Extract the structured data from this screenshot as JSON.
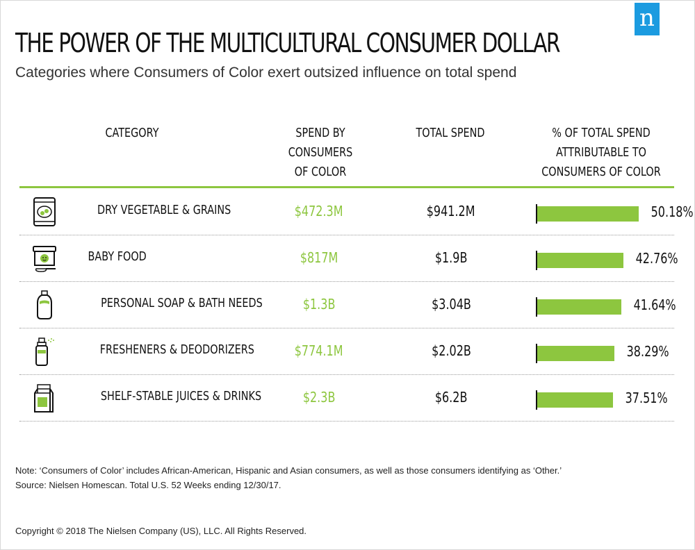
{
  "logo": {
    "letter": "n"
  },
  "title": "THE POWER OF THE MULTICULTURAL CONSUMER DOLLAR",
  "subtitle": "Categories where Consumers of Color exert outsized influence on total spend",
  "colors": {
    "accent": "#8dc63f",
    "logo_bg": "#1b9be0",
    "text": "#111111"
  },
  "headers": {
    "category": [
      "CATEGORY"
    ],
    "spend_by_coc": [
      "SPEND BY",
      "CONSUMERS",
      "OF COLOR"
    ],
    "total_spend": [
      "TOTAL SPEND"
    ],
    "pct": [
      "% OF TOTAL SPEND",
      "ATTRIBUTABLE TO",
      "CONSUMERS OF COLOR"
    ]
  },
  "chart_data": {
    "type": "table",
    "columns": [
      "CATEGORY",
      "SPEND BY CONSUMERS OF COLOR",
      "TOTAL SPEND",
      "% OF TOTAL SPEND ATTRIBUTABLE TO CONSUMERS OF COLOR"
    ],
    "rows": [
      {
        "icon": "grain-bag-icon",
        "category": "DRY VEGETABLE & GRAINS",
        "spend": "$472.3M",
        "total": "$941.2M",
        "pct_label": "50.18%",
        "pct": 50.18
      },
      {
        "icon": "baby-food-jar-icon",
        "category": "BABY FOOD",
        "spend": "$817M",
        "total": "$1.9B",
        "pct_label": "42.76%",
        "pct": 42.76
      },
      {
        "icon": "soap-bottle-icon",
        "category": "PERSONAL SOAP & BATH NEEDS",
        "spend": "$1.3B",
        "total": "$3.04B",
        "pct_label": "41.64%",
        "pct": 41.64
      },
      {
        "icon": "spray-freshener-icon",
        "category": "FRESHENERS & DEODORIZERS",
        "spend": "$774.1M",
        "total": "$2.02B",
        "pct_label": "38.29%",
        "pct": 38.29
      },
      {
        "icon": "juice-carton-icon",
        "category": "SHELF-STABLE JUICES & DRINKS",
        "spend": "$2.3B",
        "total": "$6.2B",
        "pct_label": "37.51%",
        "pct": 37.51
      }
    ]
  },
  "note": "Note: ‘Consumers of Color’ includes African-American, Hispanic and Asian consumers, as well as those consumers identifying as ‘Other.’",
  "source": "Source: Nielsen Homescan. Total U.S. 52 Weeks ending 12/30/17.",
  "copyright": "Copyright © 2018 The Nielsen Company (US), LLC. All Rights Reserved."
}
